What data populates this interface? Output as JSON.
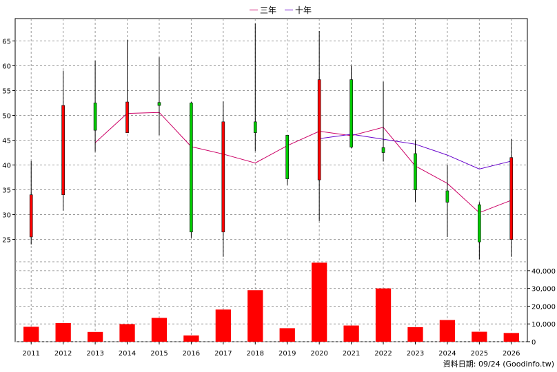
{
  "legend": {
    "items": [
      {
        "label": "三年",
        "color": "#cc0066"
      },
      {
        "label": "十年",
        "color": "#6600cc"
      }
    ]
  },
  "footer": {
    "text": "資料日期: 09/24  (Goodinfo.tw)"
  },
  "colors": {
    "up": "#ff0000",
    "down": "#00cc00",
    "volume": "#ff0000",
    "grid": "#999999"
  },
  "chart_data": {
    "type": "candlestick+line+bar",
    "years": [
      "2011",
      "2012",
      "2013",
      "2014",
      "2015",
      "2016",
      "2017",
      "2018",
      "2019",
      "2020",
      "2021",
      "2022",
      "2023",
      "2024",
      "2025",
      "2026"
    ],
    "price_axis": {
      "ticks": [
        "25",
        "30",
        "35",
        "40",
        "45",
        "50",
        "55",
        "60",
        "65"
      ],
      "ylim": [
        20.5,
        69.5
      ]
    },
    "volume_axis": {
      "ticks": [
        "0",
        "10,000",
        "20,000",
        "30,000",
        "40,000"
      ],
      "ylim": [
        0,
        45000
      ]
    },
    "candles": [
      {
        "year": "2011",
        "open": 25.5,
        "close": 34.0,
        "high": 40.8,
        "low": 24.0
      },
      {
        "year": "2012",
        "open": 34.0,
        "close": 52.0,
        "high": 59.0,
        "low": 30.8
      },
      {
        "year": "2013",
        "open": 52.5,
        "close": 47.0,
        "high": 61.0,
        "low": 42.7
      },
      {
        "year": "2014",
        "open": 46.5,
        "close": 52.7,
        "high": 65.2,
        "low": 46.5
      },
      {
        "year": "2015",
        "open": 52.6,
        "close": 52.0,
        "high": 61.7,
        "low": 46.0
      },
      {
        "year": "2016",
        "open": 52.5,
        "close": 26.5,
        "high": 52.7,
        "low": 25.3
      },
      {
        "year": "2017",
        "open": 26.5,
        "close": 48.7,
        "high": 52.8,
        "low": 21.5
      },
      {
        "year": "2018",
        "open": 48.7,
        "close": 46.5,
        "high": 68.5,
        "low": 42.8
      },
      {
        "year": "2019",
        "open": 46.0,
        "close": 37.2,
        "high": 46.0,
        "low": 36.0
      },
      {
        "year": "2020",
        "open": 37.0,
        "close": 57.2,
        "high": 67.0,
        "low": 28.7
      },
      {
        "year": "2021",
        "open": 57.2,
        "close": 43.6,
        "high": 60.0,
        "low": 43.4
      },
      {
        "year": "2022",
        "open": 43.5,
        "close": 42.5,
        "high": 56.8,
        "low": 40.7
      },
      {
        "year": "2023",
        "open": 42.3,
        "close": 35.0,
        "high": 45.0,
        "low": 32.5
      },
      {
        "year": "2024",
        "open": 34.8,
        "close": 32.5,
        "high": 40.0,
        "low": 25.5
      },
      {
        "year": "2025",
        "open": 32.0,
        "close": 24.5,
        "high": 32.5,
        "low": 21.0
      },
      {
        "year": "2026",
        "open": 25.0,
        "close": 41.5,
        "high": 45.2,
        "low": 21.5
      }
    ],
    "series": [
      {
        "name": "三年",
        "x": [
          "2013",
          "2014",
          "2015",
          "2016",
          "2017",
          "2018",
          "2019",
          "2020",
          "2021",
          "2022",
          "2023",
          "2024",
          "2025",
          "2026"
        ],
        "values": [
          44.5,
          50.4,
          50.6,
          43.7,
          42.2,
          40.4,
          43.9,
          46.8,
          45.9,
          47.6,
          39.8,
          36.3,
          30.4,
          32.9
        ]
      },
      {
        "name": "十年",
        "x": [
          "2020",
          "2021",
          "2022",
          "2023",
          "2024",
          "2025",
          "2026"
        ],
        "values": [
          45.3,
          46.2,
          45.2,
          44.2,
          42.0,
          39.2,
          40.8
        ]
      }
    ],
    "volume": [
      8400,
      10500,
      5500,
      9900,
      13400,
      3500,
      18100,
      29000,
      7600,
      44500,
      9100,
      30000,
      8200,
      12200,
      5600,
      4900
    ],
    "grid": true,
    "legend_position": "top-center"
  }
}
